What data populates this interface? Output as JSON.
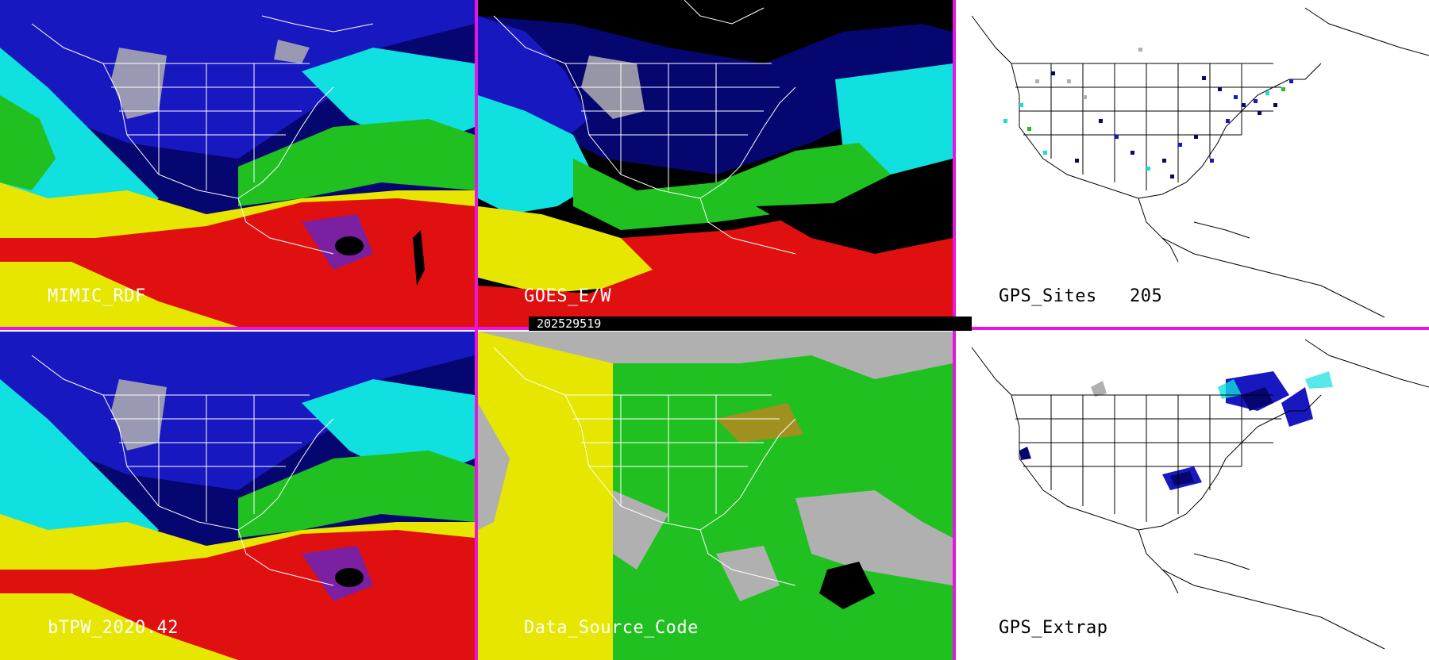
{
  "panels": [
    {
      "id": "mimic",
      "label": "MIMIC_RDF"
    },
    {
      "id": "goes",
      "label": "GOES_E/W"
    },
    {
      "id": "gps_sites",
      "label": "GPS_Sites",
      "count": "205"
    },
    {
      "id": "btpw",
      "label": "bTPW_2020.42"
    },
    {
      "id": "dsc",
      "label": "Data_Source_Code"
    },
    {
      "id": "gps_extrap",
      "label": "GPS_Extrap"
    }
  ],
  "timestamp": "202529519",
  "colors": {
    "divider": "#e815e0",
    "red": "#e01010",
    "yellow": "#e6e600",
    "green": "#20c020",
    "cyan": "#10e0e0",
    "blue": "#1818c0",
    "navy": "#060670",
    "gray": "#b0b0b0",
    "black": "#000000",
    "purple": "#7a20a0",
    "olive": "#a09020"
  }
}
